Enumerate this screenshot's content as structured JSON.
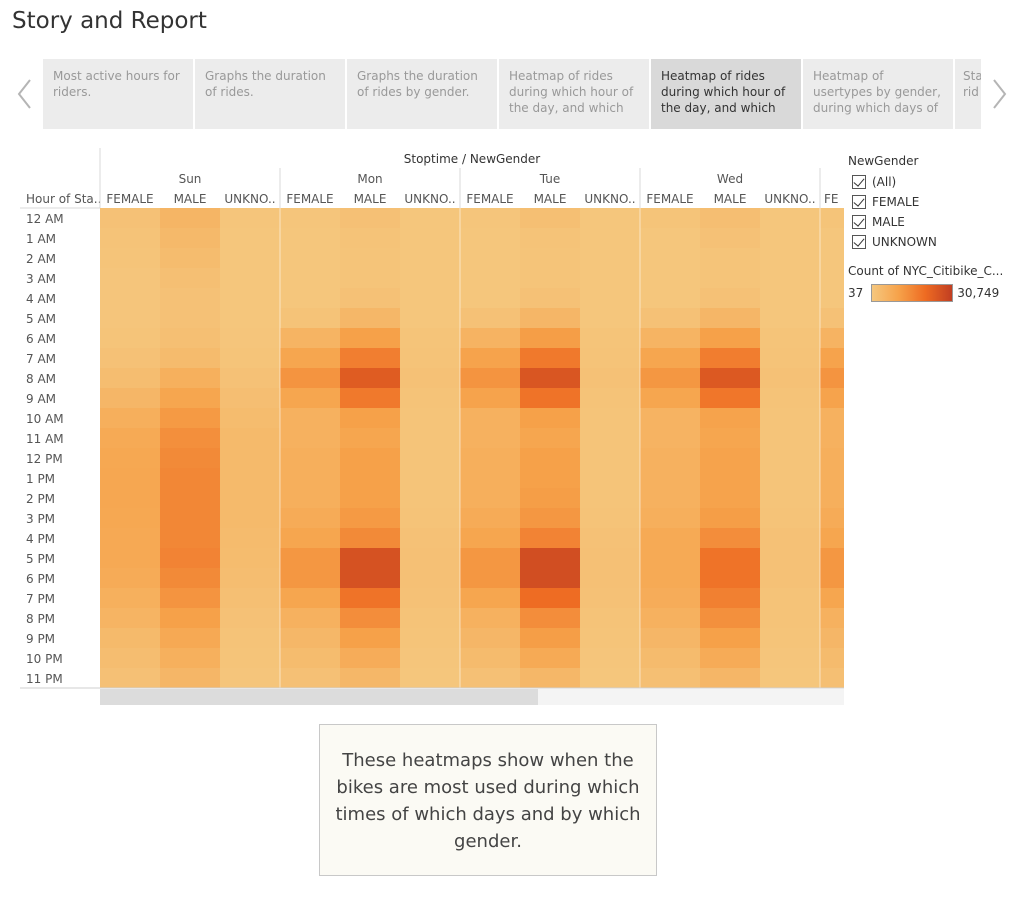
{
  "page": {
    "title": "Story and Report"
  },
  "story_points": [
    {
      "label": "Most active hours for riders."
    },
    {
      "label": "Graphs the duration of rides."
    },
    {
      "label": "Graphs the duration of rides by gender."
    },
    {
      "label": "Heatmap of rides during which hour of the day, and which"
    },
    {
      "label": "Heatmap of rides during which hour of the day, and which"
    },
    {
      "label": "Heatmap of usertypes by gender, during which days of the"
    },
    {
      "label": "Sta rid"
    }
  ],
  "chart_data": {
    "type": "heatmap",
    "title": "Stoptime / NewGender",
    "row_header": "Hour of Sta..",
    "days": [
      "Sun",
      "Mon",
      "Tue",
      "Wed"
    ],
    "gender_labels": [
      "FEMALE",
      "MALE",
      "UNKNO.."
    ],
    "partial_label": "FE",
    "hours": [
      "12 AM",
      "1 AM",
      "2 AM",
      "3 AM",
      "4 AM",
      "5 AM",
      "6 AM",
      "7 AM",
      "8 AM",
      "9 AM",
      "10 AM",
      "11 AM",
      "12 PM",
      "1 PM",
      "2 PM",
      "3 PM",
      "4 PM",
      "5 PM",
      "6 PM",
      "7 PM",
      "8 PM",
      "9 PM",
      "10 PM",
      "11 PM"
    ],
    "value_range": [
      37,
      30749
    ],
    "values": {
      "Sun": {
        "FEMALE": [
          0.05,
          0.04,
          0.03,
          0.02,
          0.02,
          0.02,
          0.03,
          0.05,
          0.09,
          0.15,
          0.22,
          0.26,
          0.28,
          0.29,
          0.29,
          0.28,
          0.27,
          0.27,
          0.25,
          0.21,
          0.17,
          0.12,
          0.09,
          0.06
        ],
        "MALE": [
          0.16,
          0.13,
          0.1,
          0.07,
          0.05,
          0.05,
          0.07,
          0.11,
          0.21,
          0.3,
          0.38,
          0.45,
          0.48,
          0.5,
          0.5,
          0.5,
          0.5,
          0.52,
          0.48,
          0.42,
          0.34,
          0.27,
          0.21,
          0.15
        ],
        "UNKNOWN": [
          0.02,
          0.01,
          0.01,
          0.01,
          0.01,
          0.01,
          0.02,
          0.03,
          0.05,
          0.08,
          0.1,
          0.12,
          0.12,
          0.12,
          0.12,
          0.12,
          0.11,
          0.1,
          0.09,
          0.07,
          0.05,
          0.04,
          0.03,
          0.02
        ]
      },
      "Mon": {
        "FEMALE": [
          0.02,
          0.01,
          0.01,
          0.01,
          0.01,
          0.04,
          0.17,
          0.3,
          0.42,
          0.3,
          0.2,
          0.2,
          0.22,
          0.22,
          0.22,
          0.25,
          0.3,
          0.4,
          0.4,
          0.3,
          0.2,
          0.14,
          0.1,
          0.06
        ],
        "MALE": [
          0.06,
          0.04,
          0.03,
          0.03,
          0.05,
          0.14,
          0.34,
          0.55,
          0.78,
          0.58,
          0.34,
          0.3,
          0.34,
          0.34,
          0.34,
          0.38,
          0.48,
          0.85,
          0.85,
          0.62,
          0.46,
          0.34,
          0.24,
          0.14
        ],
        "UNKNOWN": [
          0.01,
          0.01,
          0.01,
          0.01,
          0.01,
          0.01,
          0.03,
          0.04,
          0.05,
          0.04,
          0.03,
          0.03,
          0.03,
          0.03,
          0.03,
          0.04,
          0.05,
          0.06,
          0.06,
          0.05,
          0.04,
          0.03,
          0.02,
          0.01
        ]
      },
      "Tue": {
        "FEMALE": [
          0.02,
          0.01,
          0.01,
          0.01,
          0.01,
          0.05,
          0.18,
          0.32,
          0.42,
          0.32,
          0.2,
          0.2,
          0.22,
          0.22,
          0.22,
          0.25,
          0.3,
          0.4,
          0.4,
          0.3,
          0.2,
          0.15,
          0.11,
          0.06
        ],
        "MALE": [
          0.07,
          0.04,
          0.03,
          0.03,
          0.05,
          0.15,
          0.36,
          0.58,
          0.82,
          0.62,
          0.34,
          0.3,
          0.34,
          0.34,
          0.36,
          0.4,
          0.52,
          0.88,
          0.88,
          0.66,
          0.46,
          0.36,
          0.26,
          0.14
        ],
        "UNKNOWN": [
          0.01,
          0.01,
          0.01,
          0.01,
          0.01,
          0.01,
          0.03,
          0.04,
          0.05,
          0.04,
          0.03,
          0.03,
          0.03,
          0.03,
          0.03,
          0.04,
          0.05,
          0.06,
          0.06,
          0.05,
          0.04,
          0.03,
          0.02,
          0.01
        ]
      },
      "Wed": {
        "FEMALE": [
          0.03,
          0.01,
          0.01,
          0.01,
          0.01,
          0.05,
          0.17,
          0.3,
          0.4,
          0.3,
          0.18,
          0.18,
          0.2,
          0.2,
          0.2,
          0.22,
          0.26,
          0.26,
          0.26,
          0.24,
          0.2,
          0.15,
          0.11,
          0.07
        ],
        "MALE": [
          0.08,
          0.05,
          0.03,
          0.03,
          0.05,
          0.15,
          0.34,
          0.56,
          0.8,
          0.6,
          0.32,
          0.3,
          0.32,
          0.32,
          0.32,
          0.36,
          0.46,
          0.62,
          0.62,
          0.54,
          0.44,
          0.34,
          0.25,
          0.15
        ],
        "UNKNOWN": [
          0.01,
          0.01,
          0.01,
          0.01,
          0.01,
          0.01,
          0.03,
          0.04,
          0.05,
          0.04,
          0.03,
          0.03,
          0.03,
          0.03,
          0.03,
          0.04,
          0.05,
          0.05,
          0.05,
          0.04,
          0.04,
          0.03,
          0.02,
          0.01
        ]
      },
      "Thu": {
        "FEMALE": [
          0.03,
          0.01,
          0.01,
          0.01,
          0.01,
          0.05,
          0.18,
          0.32,
          0.42,
          0.32,
          0.2,
          0.2,
          0.22,
          0.22,
          0.22,
          0.25,
          0.3,
          0.4,
          0.4,
          0.3,
          0.2,
          0.15,
          0.11,
          0.07
        ]
      }
    },
    "scale_colors": [
      "#f5c77e",
      "#f6a24a",
      "#ee6b22",
      "#c13e22"
    ]
  },
  "legend": {
    "filter_title": "NewGender",
    "filter_items": [
      "(All)",
      "FEMALE",
      "MALE",
      "UNKNOWN"
    ],
    "color_title": "Count of NYC_Citibike_C...",
    "min_label": "37",
    "max_label": "30,749"
  },
  "caption": {
    "text": "These heatmaps show when the bikes are most used during which times of which days and by which gender."
  }
}
